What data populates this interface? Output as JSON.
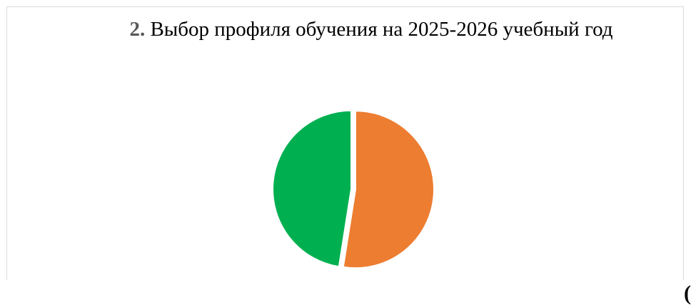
{
  "chart_data": {
    "type": "pie",
    "title_number": "2.",
    "title": "Выбор профиля обучения на 2025-2026 учебный год",
    "values": [
      52.5,
      47.5
    ],
    "colors": [
      "#ED7D31",
      "#00B050"
    ],
    "start_angle_deg": 0,
    "exploded": true
  },
  "overflow_glyph": "(",
  "colors": {
    "frame_border": "#D9D9D9",
    "background": "#FFFFFF",
    "title_number": "#595959"
  }
}
